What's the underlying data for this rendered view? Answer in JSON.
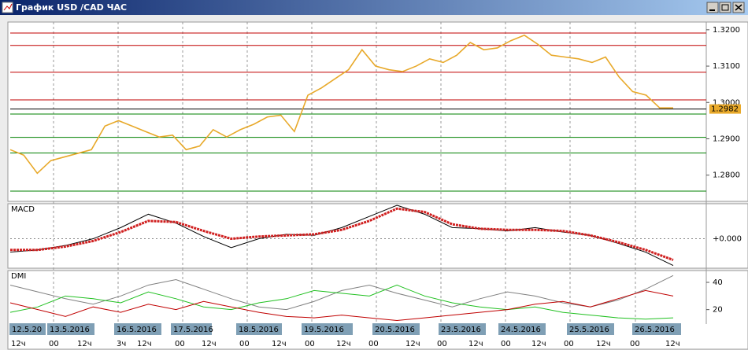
{
  "window": {
    "title": "График USD /CAD ЧАС"
  },
  "chart_data": [
    {
      "type": "line",
      "color": "#e8a92a",
      "values": [
        1.287,
        1.2855,
        1.2805,
        1.284,
        1.285,
        1.286,
        1.287,
        1.2935,
        1.295,
        1.2935,
        1.292,
        1.2905,
        1.291,
        1.287,
        1.288,
        1.2925,
        1.2905,
        1.2925,
        1.294,
        1.296,
        1.2965,
        1.292,
        1.302,
        1.304,
        1.3065,
        1.309,
        1.3145,
        1.31,
        1.309,
        1.3085,
        1.31,
        1.312,
        1.311,
        1.313,
        1.3165,
        1.3145,
        1.315,
        1.317,
        1.3185,
        1.316,
        1.313,
        1.3125,
        1.312,
        1.311,
        1.3125,
        1.307,
        1.303,
        1.302,
        1.2985,
        1.2985
      ],
      "ylim": [
        1.273,
        1.3217
      ],
      "yticks": [
        {
          "value": 1.32,
          "label": "1.3200"
        },
        {
          "value": 1.31,
          "label": "1.3100"
        },
        {
          "value": 1.3,
          "label": "1.3000"
        },
        {
          "value": 1.29,
          "label": "1.2900"
        },
        {
          "value": 1.28,
          "label": "1.2800"
        }
      ],
      "levels": [
        {
          "value": 1.3191,
          "color": "#c00000"
        },
        {
          "value": 1.3157,
          "color": "#c00000"
        },
        {
          "value": 1.3083,
          "color": "#c00000"
        },
        {
          "value": 1.3007,
          "color": "#c00000"
        },
        {
          "value": 1.2982,
          "color": "#000000"
        },
        {
          "value": 1.2968,
          "color": "#008000"
        },
        {
          "value": 1.2904,
          "color": "#008000"
        },
        {
          "value": 1.2861,
          "color": "#008000"
        },
        {
          "value": 1.2756,
          "color": "#008000"
        }
      ],
      "price_label": {
        "value": 1.2982,
        "label": "1.2982"
      }
    },
    {
      "type": "line",
      "title": "MACD",
      "lines": [
        {
          "color": "#000000",
          "values": [
            -0.0012,
            -0.001,
            -0.0006,
            0.0,
            0.001,
            0.0022,
            0.0014,
            0.0002,
            -0.0008,
            0.0,
            0.0004,
            0.0003,
            0.001,
            0.002,
            0.003,
            0.0022,
            0.001,
            0.0009,
            0.0007,
            0.001,
            0.0006,
            0.0003,
            -0.0004,
            -0.0012,
            -0.0024
          ]
        },
        {
          "color": "#d02020",
          "values": [
            -0.001,
            -0.001,
            -0.0007,
            -0.0002,
            0.0006,
            0.0016,
            0.0015,
            0.0007,
            0.0,
            0.0002,
            0.0003,
            0.0004,
            0.0008,
            0.0016,
            0.0027,
            0.0024,
            0.0013,
            0.0009,
            0.0008,
            0.0008,
            0.0007,
            0.0003,
            -0.0003,
            -0.001,
            -0.0019
          ]
        }
      ],
      "ylim": [
        -0.0025,
        0.003
      ],
      "yticks": [
        {
          "value": 0,
          "label": "+0.000"
        }
      ]
    },
    {
      "type": "line",
      "title": "DMI",
      "lines": [
        {
          "color": "#808080",
          "values": [
            38,
            33,
            28,
            24,
            30,
            38,
            42,
            35,
            28,
            22,
            20,
            26,
            34,
            38,
            32,
            27,
            22,
            28,
            33,
            30,
            25,
            22,
            27,
            35,
            45
          ]
        },
        {
          "color": "#20c020",
          "values": [
            18,
            22,
            30,
            28,
            25,
            33,
            28,
            22,
            20,
            25,
            28,
            34,
            32,
            30,
            38,
            30,
            25,
            22,
            20,
            22,
            18,
            16,
            14,
            13,
            14
          ]
        },
        {
          "color": "#c00000",
          "values": [
            25,
            20,
            15,
            22,
            18,
            24,
            20,
            26,
            22,
            18,
            15,
            14,
            16,
            14,
            12,
            14,
            16,
            18,
            20,
            24,
            26,
            22,
            28,
            34,
            30
          ]
        }
      ],
      "ylim": [
        10,
        47.5
      ],
      "yticks": [
        40,
        20
      ]
    }
  ],
  "time_axis": {
    "dates": [
      "12.5.20",
      "13.5.2016",
      "16.5.2016",
      "17.5.2016",
      "18.5.2016",
      "19.5.2016",
      "20.5.2016",
      "23.5.2016",
      "24.5.2016",
      "25.5.2016",
      "26.5.2016"
    ],
    "hours": [
      "12ч",
      "00",
      "12ч",
      "3ч",
      "12ч",
      "00",
      "12ч",
      "00",
      "12ч",
      "00",
      "12ч",
      "00",
      "12ч",
      "00",
      "12ч",
      "00",
      "12ч",
      "00",
      "12ч",
      "00",
      "12ч"
    ]
  }
}
